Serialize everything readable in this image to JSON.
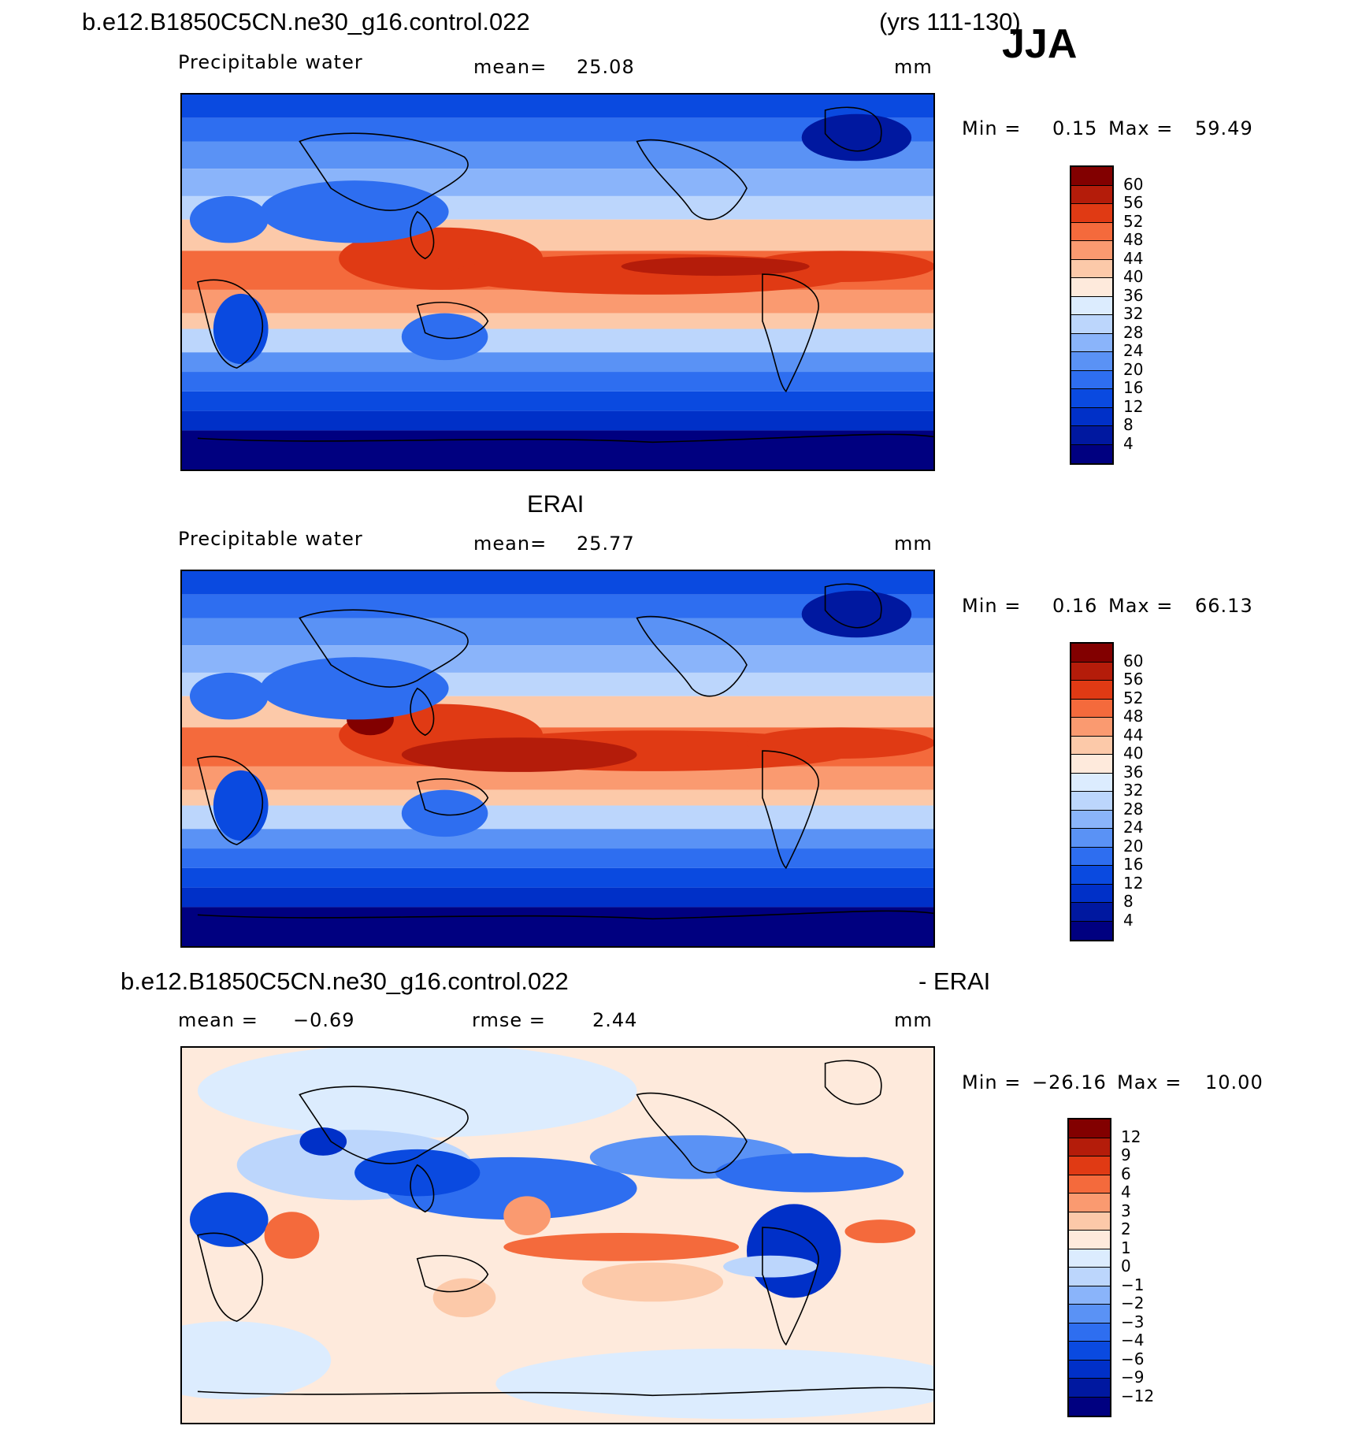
{
  "header": {
    "case_name": "b.e12.B1850C5CN.ne30_g16.control.022",
    "years": "(yrs 111-130)",
    "season": "JJA"
  },
  "panels": [
    {
      "id": "model",
      "top_title": "",
      "variable": "Precipitable water",
      "stat1_label": "mean=",
      "stat1_value": "25.08",
      "stat2_label": "",
      "stat2_value": "",
      "units": "mm",
      "min_label": "Min =",
      "min_value": "0.15",
      "max_label": "Max =",
      "max_value": "59.49"
    },
    {
      "id": "obs",
      "top_title": "ERAI",
      "variable": "Precipitable water",
      "stat1_label": "mean=",
      "stat1_value": "25.77",
      "stat2_label": "",
      "stat2_value": "",
      "units": "mm",
      "min_label": "Min =",
      "min_value": "0.16",
      "max_label": "Max =",
      "max_value": "66.13"
    },
    {
      "id": "diff",
      "top_title_left": "b.e12.B1850C5CN.ne30_g16.control.022",
      "top_title_right": "- ERAI",
      "variable": "",
      "stat1_label": "mean =",
      "stat1_value": "−0.69",
      "stat2_label": "rmse =",
      "stat2_value": "2.44",
      "units": "mm",
      "min_label": "Min =",
      "min_value": "−26.16",
      "max_label": "Max =",
      "max_value": "10.00"
    }
  ],
  "chart_data": [
    {
      "type": "heatmap",
      "title": "Precipitable water",
      "units": "mm",
      "mean": 25.08,
      "min": 0.15,
      "max": 59.49,
      "colorbar_levels": [
        4,
        8,
        12,
        16,
        20,
        24,
        28,
        32,
        36,
        40,
        44,
        48,
        52,
        56,
        60
      ],
      "colorbar_tick_labels": [
        "60",
        "56",
        "52",
        "48",
        "44",
        "40",
        "36",
        "32",
        "28",
        "24",
        "20",
        "16",
        "12",
        "8",
        "4"
      ],
      "colors": [
        "#000080",
        "#0018a0",
        "#0030c8",
        "#0a4ae0",
        "#2e6ef0",
        "#5a92f5",
        "#8ab4fa",
        "#bcd6fc",
        "#dcecfe",
        "#feeadc",
        "#fcc9a9",
        "#fa9a70",
        "#f46a3c",
        "#e03a14",
        "#b41c0a",
        "#820000"
      ]
    },
    {
      "type": "heatmap",
      "title": "ERAI Precipitable water",
      "units": "mm",
      "mean": 25.77,
      "min": 0.16,
      "max": 66.13,
      "colorbar_levels": [
        4,
        8,
        12,
        16,
        20,
        24,
        28,
        32,
        36,
        40,
        44,
        48,
        52,
        56,
        60
      ],
      "colorbar_tick_labels": [
        "60",
        "56",
        "52",
        "48",
        "44",
        "40",
        "36",
        "32",
        "28",
        "24",
        "20",
        "16",
        "12",
        "8",
        "4"
      ],
      "colors": [
        "#000080",
        "#0018a0",
        "#0030c8",
        "#0a4ae0",
        "#2e6ef0",
        "#5a92f5",
        "#8ab4fa",
        "#bcd6fc",
        "#dcecfe",
        "#feeadc",
        "#fcc9a9",
        "#fa9a70",
        "#f46a3c",
        "#e03a14",
        "#b41c0a",
        "#820000"
      ]
    },
    {
      "type": "heatmap",
      "title": "b.e12.B1850C5CN.ne30_g16.control.022 - ERAI",
      "units": "mm",
      "mean": -0.69,
      "rmse": 2.44,
      "min": -26.16,
      "max": 10.0,
      "colorbar_levels": [
        -12,
        -9,
        -6,
        -4,
        -3,
        -2,
        -1,
        0,
        1,
        2,
        3,
        4,
        6,
        9,
        12
      ],
      "colorbar_tick_labels": [
        "12",
        "9",
        "6",
        "4",
        "3",
        "2",
        "1",
        "0",
        "−1",
        "−2",
        "−3",
        "−4",
        "−6",
        "−9",
        "−12"
      ],
      "colors": [
        "#000080",
        "#0018a0",
        "#0030c8",
        "#0a4ae0",
        "#2e6ef0",
        "#5a92f5",
        "#8ab4fa",
        "#bcd6fc",
        "#dcecfe",
        "#feeadc",
        "#fcc9a9",
        "#fa9a70",
        "#f46a3c",
        "#e03a14",
        "#b41c0a",
        "#820000"
      ]
    }
  ]
}
